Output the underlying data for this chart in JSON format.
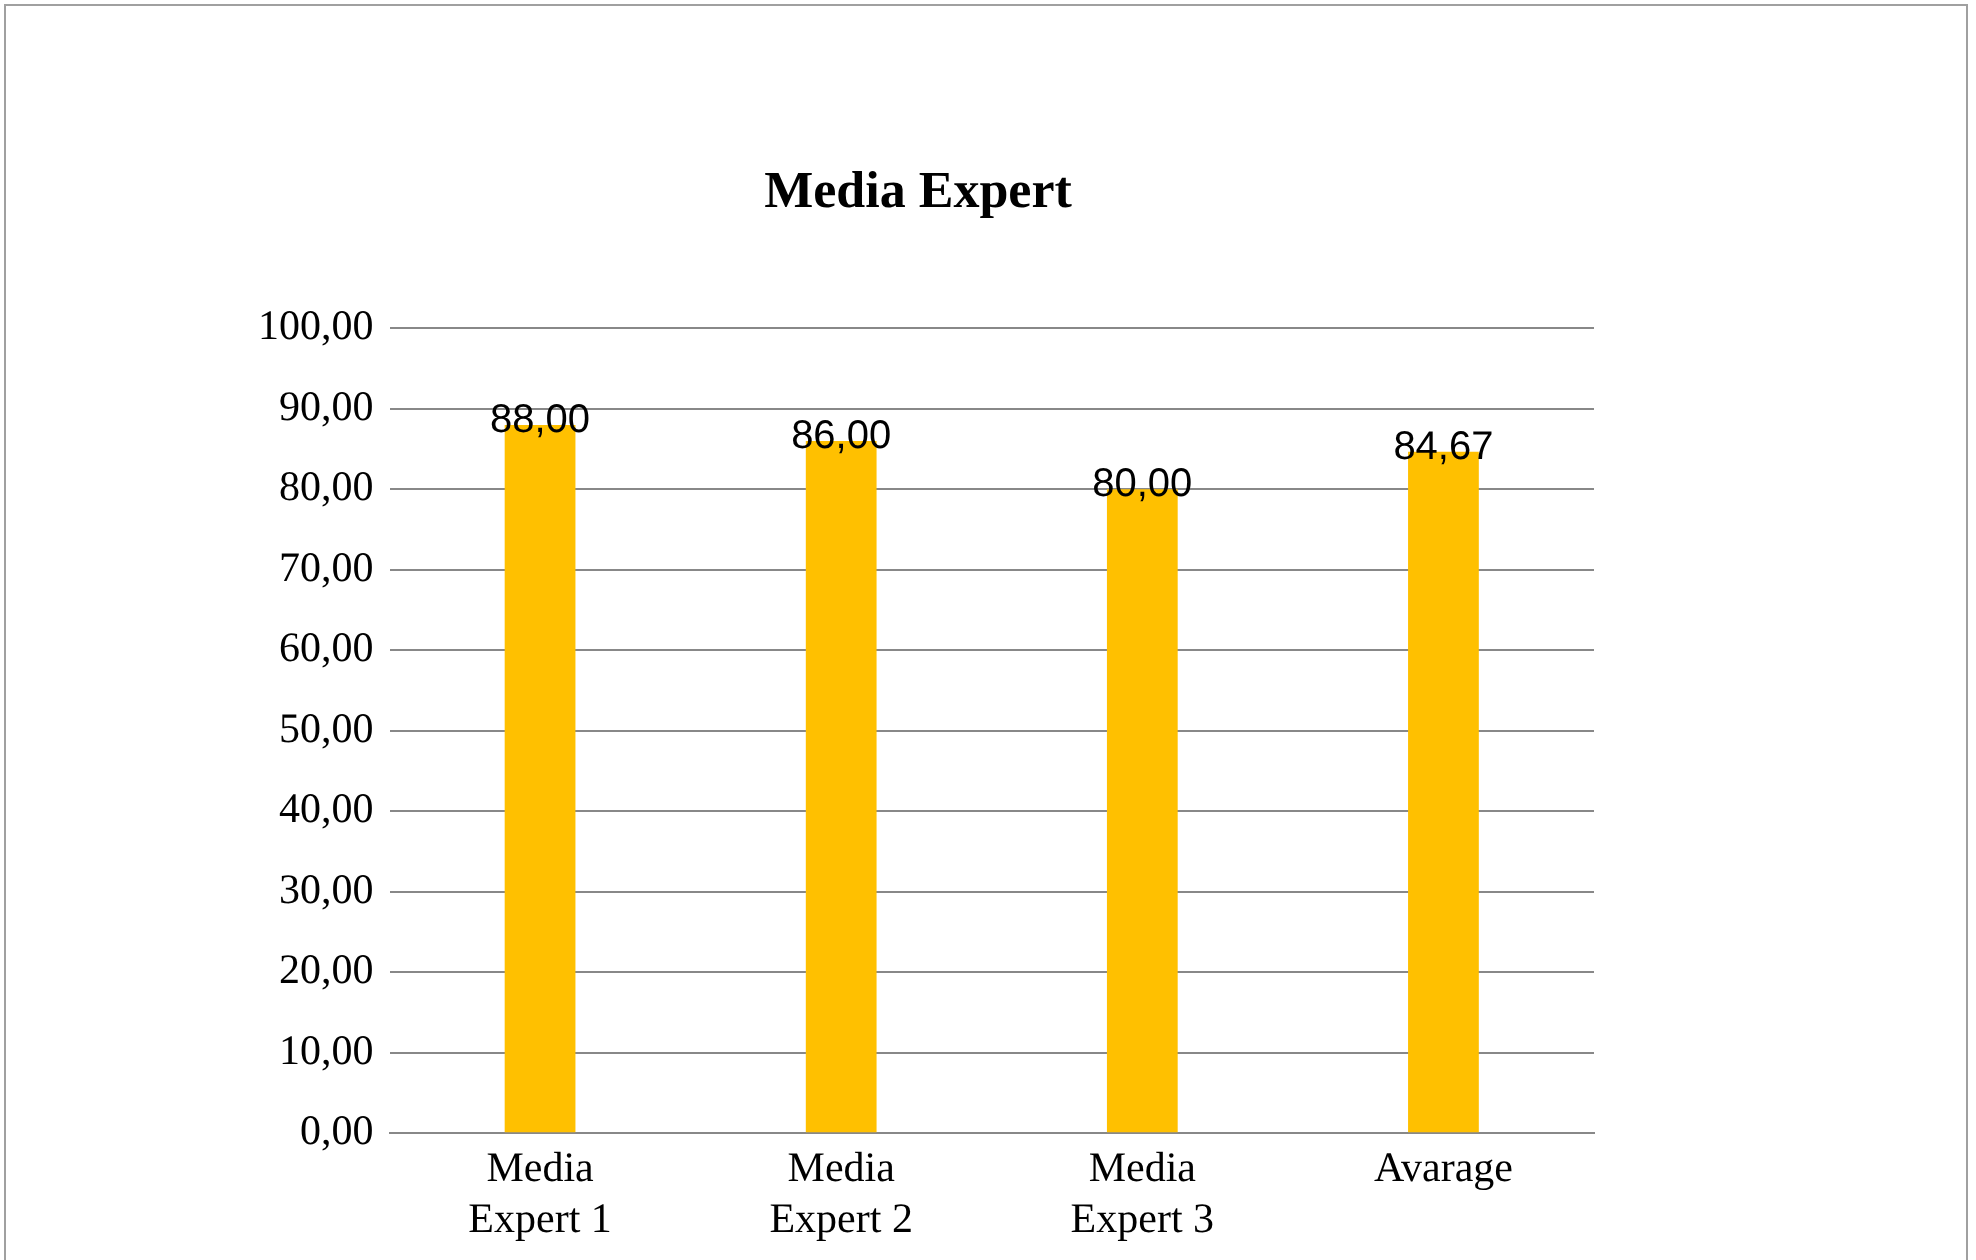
{
  "chart_data": {
    "type": "bar",
    "title": "Media Expert",
    "categories": [
      "Media Expert 1",
      "Media Expert 2",
      "Media Expert 3",
      "Avarage"
    ],
    "values": [
      88,
      86,
      80,
      84.67
    ],
    "value_labels": [
      "88,00",
      "86,00",
      "80,00",
      "84,67"
    ],
    "color": "#ffc000",
    "ylim": [
      0,
      100
    ],
    "yticks": [
      {
        "value": 0,
        "label": "0,00"
      },
      {
        "value": 10,
        "label": "10,00"
      },
      {
        "value": 20,
        "label": "20,00"
      },
      {
        "value": 30,
        "label": "30,00"
      },
      {
        "value": 40,
        "label": "40,00"
      },
      {
        "value": 50,
        "label": "50,00"
      },
      {
        "value": 60,
        "label": "60,00"
      },
      {
        "value": 70,
        "label": "70,00"
      },
      {
        "value": 80,
        "label": "80,00"
      },
      {
        "value": 90,
        "label": "90,00"
      },
      {
        "value": 100,
        "label": "100,00"
      }
    ],
    "grid": "y",
    "legend": false
  }
}
